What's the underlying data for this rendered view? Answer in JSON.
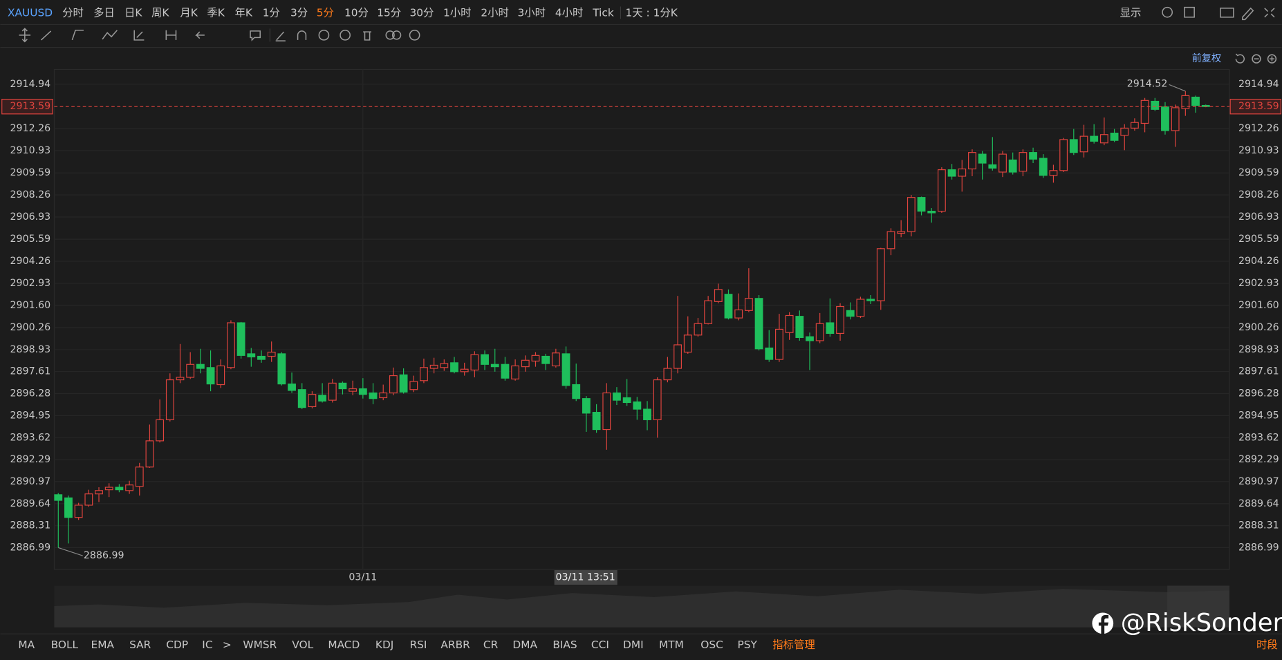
{
  "toolbar": {
    "symbol": "XAUUSD",
    "periods": [
      "分时",
      "多日",
      "日K",
      "周K",
      "月K",
      "季K",
      "年K",
      "1分",
      "3分",
      "5分",
      "10分",
      "15分",
      "30分",
      "1小时",
      "2小时",
      "3小时",
      "4小时",
      "Tick"
    ],
    "active_index": 9,
    "range": "1天 : 1分K",
    "display": "显示",
    "adjust": "前复权"
  },
  "indicators": {
    "items": [
      "MA",
      "BOLL",
      "EMA",
      "SAR",
      "CDP",
      "IC",
      ">",
      "WMSR",
      "VOL",
      "MACD",
      "KDJ",
      "RSI",
      "ARBR",
      "CR",
      "DMA",
      "BIAS",
      "CCI",
      "DMI",
      "MTM",
      "OSC",
      "PSY"
    ],
    "manage": "指标管理",
    "session": "时段"
  },
  "watermark": "@RiskSonder",
  "chart_data": {
    "type": "candlestick",
    "categories": [
      null,
      null,
      null,
      null,
      null,
      null,
      null,
      null,
      null,
      null,
      null,
      null,
      null,
      null,
      null,
      null,
      null,
      null,
      null,
      null,
      null,
      null,
      null,
      null,
      null,
      null,
      null,
      null,
      null,
      null,
      "03/11",
      null,
      null,
      null,
      null,
      null,
      null,
      null,
      null,
      null,
      null,
      null,
      null,
      null,
      null,
      null,
      null,
      null,
      null,
      null,
      null,
      null,
      null,
      null,
      null,
      null,
      null,
      null,
      null,
      null,
      null,
      null,
      null,
      null,
      null,
      null,
      null,
      null,
      null,
      null,
      null,
      null,
      null,
      null,
      null,
      null,
      null,
      null,
      null,
      null,
      null,
      null,
      null,
      null,
      null,
      null,
      null,
      null,
      null,
      null,
      null,
      null,
      null,
      null,
      null,
      null,
      null,
      null,
      null,
      null,
      null,
      null,
      null,
      null,
      null,
      null,
      null,
      null,
      null,
      null,
      null,
      null,
      null,
      null
    ],
    "open": [
      2890.18,
      2889.99,
      2888.81,
      2889.55,
      2890.23,
      2890.48,
      2890.63,
      2890.43,
      2890.68,
      2891.85,
      2893.43,
      2894.7,
      2897.11,
      2897.26,
      2898.04,
      2897.85,
      2896.82,
      2897.85,
      2900.55,
      2898.68,
      2898.53,
      2898.53,
      2898.68,
      2896.86,
      2896.52,
      2895.49,
      2896.18,
      2895.88,
      2896.91,
      2896.42,
      2896.57,
      2896.32,
      2896.03,
      2896.32,
      2897.41,
      2896.52,
      2897.06,
      2897.8,
      2897.85,
      2898.14,
      2897.6,
      2897.7,
      2898.63,
      2898.04,
      2898.04,
      2897.16,
      2897.9,
      2898.24,
      2898.53,
      2897.95,
      2898.68,
      2896.82,
      2895.98,
      2895.15,
      2894.11,
      2896.32,
      2896.03,
      2895.78,
      2895.34,
      2894.7,
      2897.11,
      2897.8,
      2898.78,
      2899.81,
      2900.5,
      2901.83,
      2902.27,
      2900.84,
      2901.29,
      2902.02,
      2899.03,
      2898.34,
      2899.96,
      2900.94,
      2899.71,
      2899.47,
      2900.55,
      2899.91,
      2901.29,
      2900.94,
      2901.97,
      2901.88,
      2905.02,
      2905.95,
      2906.05,
      2908.11,
      2907.28,
      2907.28,
      2909.78,
      2909.39,
      2909.83,
      2910.72,
      2910.08,
      2909.64,
      2910.37,
      2909.69,
      2910.82,
      2910.47,
      2909.44,
      2909.73,
      2911.6,
      2910.86,
      2911.8,
      2911.4,
      2911.99,
      2911.85,
      2912.29,
      2912.58,
      2913.91,
      2913.57,
      2912.14,
      2913.47,
      2914.16,
      2913.66
    ],
    "high": [
      2890.28,
      2890.13,
      2889.69,
      2890.48,
      2890.63,
      2890.87,
      2890.82,
      2891.02,
      2892.1,
      2894.41,
      2895.93,
      2897.5,
      2899.27,
      2898.78,
      2898.98,
      2898.88,
      2898.34,
      2900.7,
      2900.6,
      2899.03,
      2898.88,
      2899.42,
      2898.78,
      2897.55,
      2896.91,
      2896.42,
      2896.91,
      2897.16,
      2897.01,
      2897.06,
      2897.21,
      2896.91,
      2896.82,
      2897.85,
      2897.8,
      2897.36,
      2898.39,
      2898.44,
      2898.34,
      2898.49,
      2898.14,
      2898.83,
      2898.88,
      2898.98,
      2898.49,
      2898.34,
      2898.58,
      2898.78,
      2898.68,
      2898.98,
      2899.12,
      2898.09,
      2896.13,
      2895.64,
      2896.91,
      2896.67,
      2897.16,
      2896.08,
      2895.83,
      2897.26,
      2898.49,
      2902.17,
      2900.94,
      2900.84,
      2902.17,
      2902.91,
      2902.56,
      2902.32,
      2903.84,
      2902.22,
      2900.11,
      2901.09,
      2901.19,
      2901.29,
      2899.96,
      2901.14,
      2902.02,
      2901.73,
      2901.78,
      2902.12,
      2902.22,
      2905.07,
      2906.25,
      2906.74,
      2908.26,
      2908.16,
      2907.47,
      2909.93,
      2910.13,
      2910.37,
      2911.01,
      2910.91,
      2911.75,
      2910.91,
      2910.82,
      2911.01,
      2911.11,
      2910.72,
      2910.08,
      2911.7,
      2912.24,
      2912.49,
      2912.53,
      2912.93,
      2912.24,
      2912.53,
      2912.88,
      2914.11,
      2914.11,
      2913.86,
      2913.71,
      2914.52,
      2914.25,
      2913.71
    ],
    "low": [
      2886.99,
      2887.24,
      2888.66,
      2889.45,
      2889.74,
      2890.04,
      2890.33,
      2890.23,
      2890.13,
      2891.8,
      2893.33,
      2894.6,
      2896.91,
      2897.16,
      2897.5,
      2896.42,
      2896.62,
      2897.75,
      2898.39,
      2897.9,
      2898.14,
      2898.19,
      2896.77,
      2896.32,
      2895.34,
      2895.39,
      2895.74,
      2895.74,
      2896.23,
      2896.18,
      2895.98,
      2895.64,
      2895.88,
      2896.18,
      2896.28,
      2896.37,
      2896.91,
      2897.5,
      2897.65,
      2897.5,
      2897.36,
      2897.26,
      2897.7,
      2897.6,
      2897.06,
      2897.06,
      2897.6,
      2897.9,
      2897.7,
      2897.85,
      2896.57,
      2895.83,
      2893.97,
      2893.92,
      2892.89,
      2895.59,
      2895.54,
      2894.7,
      2894.07,
      2893.62,
      2896.96,
      2897.5,
      2898.68,
      2899.71,
      2900.45,
      2901.73,
      2900.75,
      2900.7,
      2901.19,
      2898.88,
      2898.19,
      2898.19,
      2899.52,
      2899.47,
      2897.7,
      2899.32,
      2899.71,
      2899.47,
      2900.75,
      2900.84,
      2901.68,
      2901.33,
      2904.63,
      2905.71,
      2905.76,
      2907.03,
      2906.59,
      2907.18,
      2909.19,
      2908.46,
      2909.39,
      2909.19,
      2909.73,
      2909.34,
      2909.49,
      2909.39,
      2910.18,
      2909.29,
      2909.0,
      2909.64,
      2910.67,
      2910.52,
      2911.36,
      2911.26,
      2911.45,
      2910.96,
      2912.14,
      2912.04,
      2913.32,
      2911.9,
      2911.16,
      2913.03,
      2913.22,
      2913.55
    ],
    "close": [
      2889.84,
      2888.81,
      2889.55,
      2890.23,
      2890.43,
      2890.63,
      2890.48,
      2890.77,
      2891.85,
      2893.43,
      2894.7,
      2897.11,
      2897.26,
      2898.04,
      2897.8,
      2896.86,
      2897.95,
      2900.55,
      2898.58,
      2898.49,
      2898.34,
      2898.78,
      2896.86,
      2896.47,
      2895.44,
      2896.23,
      2895.83,
      2896.91,
      2896.57,
      2896.57,
      2896.23,
      2895.98,
      2896.32,
      2897.36,
      2896.37,
      2897.01,
      2897.85,
      2897.99,
      2898.09,
      2897.6,
      2897.75,
      2898.63,
      2898.04,
      2897.9,
      2897.21,
      2897.95,
      2898.29,
      2898.58,
      2898.09,
      2898.73,
      2896.77,
      2895.98,
      2895.1,
      2894.11,
      2896.32,
      2895.88,
      2895.74,
      2895.34,
      2894.7,
      2897.11,
      2897.8,
      2899.22,
      2899.81,
      2900.5,
      2901.88,
      2902.56,
      2900.84,
      2901.33,
      2902.02,
      2898.98,
      2898.34,
      2900.16,
      2900.99,
      2899.66,
      2899.47,
      2900.5,
      2899.91,
      2901.53,
      2900.94,
      2901.97,
      2901.88,
      2905.02,
      2906.05,
      2906.05,
      2908.11,
      2907.28,
      2907.18,
      2909.78,
      2909.39,
      2909.83,
      2910.82,
      2910.18,
      2909.88,
      2910.72,
      2909.64,
      2910.82,
      2910.42,
      2909.44,
      2909.73,
      2911.6,
      2910.82,
      2911.8,
      2911.5,
      2911.9,
      2911.55,
      2912.29,
      2912.63,
      2913.96,
      2913.42,
      2912.14,
      2913.52,
      2914.25,
      2913.66,
      2913.59
    ],
    "ylim": [
      2885.68,
      2915.83
    ],
    "yticks": [
      2914.94,
      2912.26,
      2910.93,
      2909.59,
      2908.26,
      2906.93,
      2905.59,
      2904.26,
      2902.93,
      {
        "value": 2901.6,
        "label": "2901.60"
      },
      2900.26,
      2898.93,
      2897.61,
      2896.28,
      2894.95,
      2893.62,
      2892.29,
      2890.97,
      2889.64,
      2888.31,
      2886.99
    ],
    "grid": true,
    "up_color": "#e0443e",
    "down_color": "#1fbf5c",
    "crosshair_label": "03/11 13:51"
  }
}
